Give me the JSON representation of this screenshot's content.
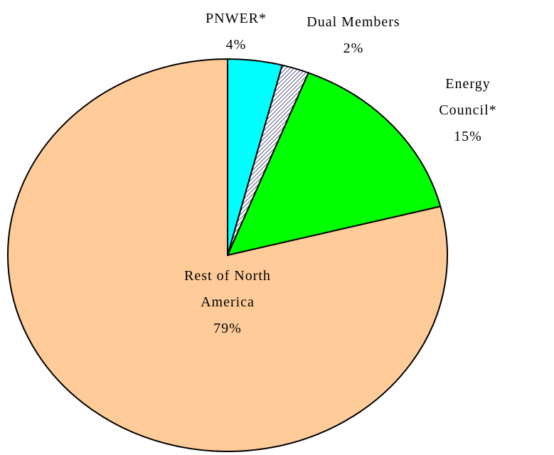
{
  "chart_data": {
    "type": "pie",
    "categories": [
      "PNWER*",
      "Dual Members",
      "Energy Council*",
      "Rest of North America"
    ],
    "values": [
      4,
      2,
      15,
      79
    ],
    "value_labels": [
      "4%",
      "2%",
      "15%",
      "79%"
    ],
    "colors": [
      "#00ffff",
      "#333366",
      "#00ff00",
      "#ffcc99"
    ],
    "hatched": [
      false,
      true,
      false,
      false
    ]
  }
}
